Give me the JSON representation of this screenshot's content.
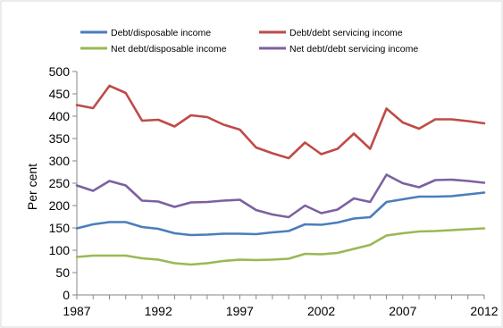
{
  "chart_data": {
    "type": "line",
    "xlabel": "",
    "ylabel": "Per cent",
    "ylim": [
      0,
      500
    ],
    "xlim": [
      1987,
      2012
    ],
    "x_ticks": [
      "1987",
      "1992",
      "1997",
      "2002",
      "2007",
      "2012"
    ],
    "y_ticks": [
      "0",
      "50",
      "100",
      "150",
      "200",
      "250",
      "300",
      "350",
      "400",
      "450",
      "500"
    ],
    "grid": false,
    "legend_position": "top",
    "x": [
      1987,
      1988,
      1989,
      1990,
      1991,
      1992,
      1993,
      1994,
      1995,
      1996,
      1997,
      1998,
      1999,
      2000,
      2001,
      2002,
      2003,
      2004,
      2005,
      2006,
      2007,
      2008,
      2009,
      2010,
      2011,
      2012
    ],
    "series": [
      {
        "name": "Debt/disposable income",
        "color": "#4a7ebb",
        "values": [
          149,
          158,
          163,
          163,
          152,
          148,
          138,
          134,
          135,
          137,
          137,
          136,
          140,
          143,
          158,
          157,
          162,
          171,
          174,
          208,
          214,
          220,
          220,
          221,
          225,
          229
        ]
      },
      {
        "name": "Debt/debt servicing income",
        "color": "#be4b48",
        "values": [
          425,
          418,
          468,
          452,
          390,
          392,
          377,
          402,
          398,
          381,
          370,
          330,
          317,
          306,
          341,
          315,
          327,
          361,
          327,
          417,
          386,
          372,
          393,
          393,
          389,
          384
        ]
      },
      {
        "name": "Net debt/disposable income",
        "color": "#98b954",
        "values": [
          85,
          88,
          88,
          88,
          82,
          79,
          71,
          68,
          71,
          76,
          79,
          78,
          79,
          81,
          92,
          91,
          94,
          103,
          112,
          133,
          138,
          142,
          143,
          145,
          147,
          149
        ]
      },
      {
        "name": "Net debt/debt servicing income",
        "color": "#7d60a0",
        "values": [
          245,
          233,
          255,
          245,
          211,
          209,
          197,
          207,
          208,
          211,
          213,
          190,
          180,
          174,
          200,
          183,
          191,
          216,
          208,
          269,
          250,
          241,
          257,
          258,
          255,
          251
        ]
      }
    ]
  }
}
